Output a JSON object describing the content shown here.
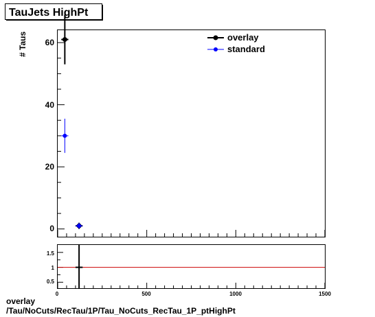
{
  "chart_data": [
    {
      "type": "scatter",
      "title": "TauJets HighPt",
      "ylabel": "# Taus",
      "xlabel": "",
      "xlim": [
        0,
        1500
      ],
      "ylim": [
        -2.5,
        64
      ],
      "x_ticks": [
        "0",
        "500",
        "1000",
        "1500"
      ],
      "y_ticks": [
        "0",
        "20",
        "40",
        "60"
      ],
      "legend_position": "top-right",
      "series": [
        {
          "name": "overlay",
          "color": "#000000",
          "points": [
            {
              "x": 40,
              "xerr": 20,
              "y": 61,
              "yerr": 8
            },
            {
              "x": 120,
              "xerr": 20,
              "y": 1,
              "yerr": 1
            }
          ]
        },
        {
          "name": "standard",
          "color": "#0000ff",
          "points": [
            {
              "x": 40,
              "xerr": 20,
              "y": 30,
              "yerr": 5.5
            },
            {
              "x": 120,
              "xerr": 20,
              "y": 1,
              "yerr": 1
            }
          ]
        }
      ]
    },
    {
      "type": "scatter",
      "title": "",
      "xlabel": "",
      "ylabel": "",
      "xlim": [
        0,
        1500
      ],
      "ylim": [
        0.3,
        1.75
      ],
      "x_ticks": [
        "0",
        "500",
        "1000",
        "1500"
      ],
      "y_ticks": [
        "0.5",
        "1",
        "1.5"
      ],
      "reference_line": {
        "y": 1,
        "color": "#cc0000"
      },
      "series": [
        {
          "name": "",
          "color": "#000000",
          "points": [
            {
              "x": 120,
              "xerr": 20,
              "y": 1,
              "yerr": 1.4
            }
          ]
        }
      ]
    }
  ],
  "footer": {
    "line1": "overlay",
    "line2": "/Tau/NoCuts/RecTau/1P/Tau_NoCuts_RecTau_1P_ptHighPt"
  }
}
